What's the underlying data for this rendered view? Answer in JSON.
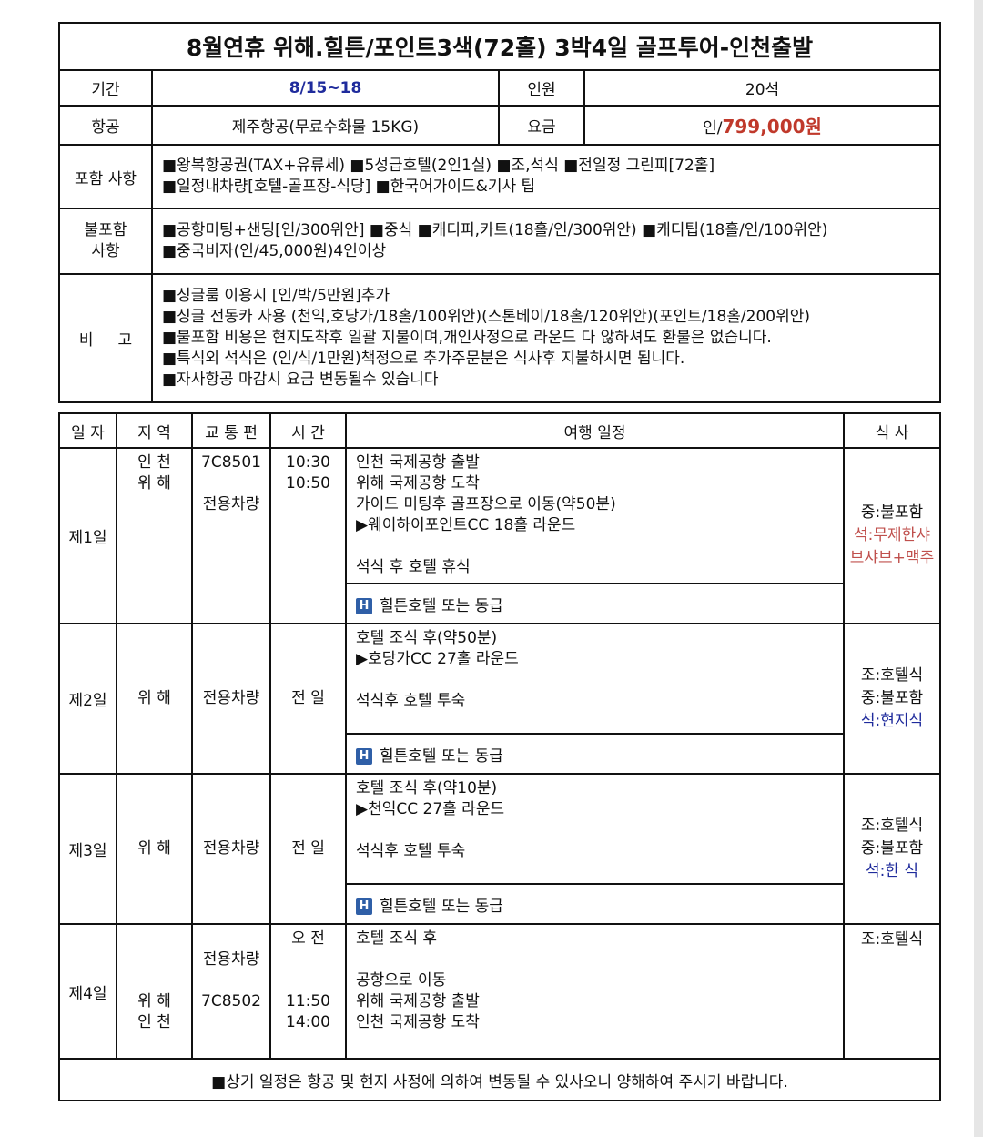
{
  "title": "8월연휴 위해.힐튼/포인트3색(72홀) 3박4일 골프투어-인천출발",
  "info": {
    "period_label": "기간",
    "period": "8/15~18",
    "people_label": "인원",
    "people": "20석",
    "airline_label": "항공",
    "airline": "제주항공(무료수화물 15KG)",
    "price_label": "요금",
    "price_prefix": "인/",
    "price": "799,000원",
    "included_label": "포함 사항",
    "included": [
      "■왕복항공권(TAX+유류세) ■5성급호텔(2인1실) ■조,석식 ■전일정 그린피[72홀]",
      "■일정내차량[호텔-골프장-식당]   ■한국어가이드&기사 팁"
    ],
    "excluded_label": "불포함\n사항",
    "excluded": [
      "■공항미팅+샌딩[인/300위안] ■중식 ■캐디피,카트(18홀/인/300위안) ■캐디팁(18홀/인/100위안)",
      "■중국비자(인/45,000원)4인이상"
    ],
    "notes_label": "비     고",
    "notes": [
      "■싱글룸 이용시 [인/박/5만원]추가",
      "■싱글 전동카 사용 (천익,호당가/18홀/100위안)(스톤베이/18홀/120위안)(포인트/18홀/200위안)",
      "■불포함 비용은 현지도착후 일괄 지불이며,개인사정으로 라운드 다 않하셔도 환불은 없습니다.",
      "■특식외 석식은 (인/식/1만원)책정으로 추가주문분은 식사후 지불하시면 됩니다.",
      "■자사항공 마감시 요금 변동될수 있습니다"
    ]
  },
  "schedule": {
    "headers": [
      "일 자",
      "지 역",
      "교 통 편",
      "시 간",
      "여행 일정",
      "식 사"
    ],
    "days": [
      {
        "day": "제1일",
        "region": "인 천\n위 해",
        "transport": "7C8501\n\n전용차량",
        "time": "10:30\n10:50",
        "itinerary": "인천 국제공항 출발\n위해 국제공항 도착\n가이드 미팅후 골프장으로 이동(약50분)\n▶웨이하이포인트CC   18홀 라운드\n\n석식 후 호텔 휴식",
        "hotel": "힐튼호텔 또는 동급",
        "meals": [
          {
            "text": "중:불포함",
            "color": "#111111"
          },
          {
            "text": "석:무제한샤",
            "color": "#c0504d"
          },
          {
            "text": "브샤브+맥주",
            "color": "#c0504d"
          }
        ]
      },
      {
        "day": "제2일",
        "region": "위 해",
        "transport": "전용차량",
        "time": "전 일",
        "itinerary": "호텔 조식 후(약50분)\n▶호당가CC 27홀 라운드\n\n석식후 호텔 투숙",
        "hotel": "힐튼호텔 또는 동급",
        "meals": [
          {
            "text": "조:호텔식",
            "color": "#111111"
          },
          {
            "text": "중:불포함",
            "color": "#111111"
          },
          {
            "text": "석:현지식",
            "color": "#1f2b9c"
          }
        ]
      },
      {
        "day": "제3일",
        "region": "위 해",
        "transport": "전용차량",
        "time": "전 일",
        "itinerary": "호텔 조식 후(약10분)\n▶천익CC 27홀 라운드\n\n석식후 호텔 투숙",
        "hotel": "힐튼호텔 또는 동급",
        "meals": [
          {
            "text": "조:호텔식",
            "color": "#111111"
          },
          {
            "text": "중:불포함",
            "color": "#111111"
          },
          {
            "text": "석:한   식",
            "color": "#1f2b9c"
          }
        ]
      },
      {
        "day": "제4일",
        "region": "\n\n\n위 해\n인 천",
        "transport": "\n전용차량\n\n7C8502",
        "time": "오 전\n\n\n11:50\n14:00",
        "itinerary": "호텔 조식 후\n\n공항으로 이동\n위해 국제공항 출발\n인천 국제공항 도착",
        "meals": [
          {
            "text": "조:호텔식",
            "color": "#111111"
          }
        ]
      }
    ],
    "hotel_icon": "hotel-icon",
    "hotel_icon_letter": "H",
    "footer": "■상기 일정은 항공 및 현지 사정에 의하여 변동될 수 있사오니 양해하여 주시기 바랍니다."
  }
}
